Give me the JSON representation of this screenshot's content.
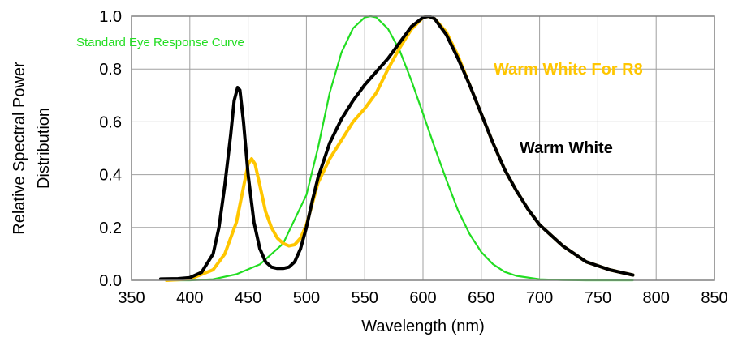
{
  "chart_data": {
    "type": "line",
    "xlabel": "Wavelength (nm)",
    "ylabel_lines": [
      "Relative Spectral Power",
      "Distribution"
    ],
    "xlim": [
      350,
      850
    ],
    "ylim": [
      0.0,
      1.0
    ],
    "x_ticks": [
      "350",
      "400",
      "450",
      "500",
      "550",
      "600",
      "650",
      "700",
      "750",
      "800",
      "850"
    ],
    "y_ticks": [
      "0.0",
      "0.2",
      "0.4",
      "0.6",
      "0.8",
      "1.0"
    ],
    "grid": true,
    "series": [
      {
        "name": "Standard Eye Response Curve",
        "color": "#22dd22",
        "x": [
          380,
          400,
          420,
          440,
          460,
          480,
          500,
          510,
          520,
          530,
          540,
          550,
          555,
          560,
          570,
          580,
          590,
          600,
          610,
          620,
          630,
          640,
          650,
          660,
          670,
          680,
          700,
          720,
          740,
          760,
          780
        ],
        "y": [
          0.0,
          0.0,
          0.004,
          0.023,
          0.06,
          0.139,
          0.323,
          0.503,
          0.71,
          0.862,
          0.954,
          0.995,
          1.0,
          0.995,
          0.952,
          0.87,
          0.757,
          0.631,
          0.503,
          0.381,
          0.265,
          0.175,
          0.107,
          0.061,
          0.032,
          0.017,
          0.004,
          0.001,
          0.0,
          0.0,
          0.0
        ]
      },
      {
        "name": "Warm White For R8",
        "color": "#ffc600",
        "x": [
          380,
          400,
          420,
          430,
          440,
          445,
          450,
          453,
          456,
          460,
          465,
          470,
          475,
          480,
          485,
          490,
          495,
          500,
          505,
          510,
          520,
          530,
          540,
          550,
          560,
          570,
          580,
          590,
          600,
          605,
          610,
          620,
          630,
          640,
          650,
          660,
          670,
          680,
          690,
          700,
          720,
          740,
          760,
          780
        ],
        "y": [
          0.0,
          0.005,
          0.04,
          0.1,
          0.22,
          0.33,
          0.44,
          0.46,
          0.44,
          0.36,
          0.26,
          0.2,
          0.16,
          0.14,
          0.13,
          0.135,
          0.16,
          0.21,
          0.29,
          0.37,
          0.46,
          0.53,
          0.6,
          0.65,
          0.71,
          0.8,
          0.88,
          0.95,
          0.995,
          1.0,
          0.99,
          0.94,
          0.85,
          0.74,
          0.63,
          0.52,
          0.42,
          0.34,
          0.27,
          0.21,
          0.13,
          0.07,
          0.04,
          0.02
        ]
      },
      {
        "name": "Warm White",
        "color": "#000000",
        "x": [
          375,
          390,
          400,
          410,
          420,
          425,
          430,
          435,
          438,
          441,
          443,
          446,
          450,
          455,
          460,
          465,
          470,
          475,
          480,
          485,
          490,
          495,
          500,
          505,
          510,
          520,
          530,
          540,
          550,
          560,
          570,
          580,
          590,
          600,
          605,
          610,
          620,
          630,
          640,
          650,
          660,
          670,
          680,
          690,
          700,
          720,
          740,
          760,
          780
        ],
        "y": [
          0.005,
          0.006,
          0.01,
          0.03,
          0.1,
          0.2,
          0.36,
          0.55,
          0.68,
          0.73,
          0.72,
          0.6,
          0.4,
          0.22,
          0.12,
          0.07,
          0.05,
          0.045,
          0.045,
          0.05,
          0.07,
          0.12,
          0.2,
          0.3,
          0.39,
          0.52,
          0.61,
          0.68,
          0.74,
          0.79,
          0.84,
          0.9,
          0.96,
          0.995,
          1.0,
          0.99,
          0.93,
          0.84,
          0.74,
          0.63,
          0.52,
          0.42,
          0.34,
          0.27,
          0.21,
          0.13,
          0.07,
          0.04,
          0.02
        ]
      }
    ],
    "annotations": [
      {
        "text": "Standard Eye Response Curve",
        "color": "#22dd22"
      },
      {
        "text": "Warm White For R8",
        "color": "#ffc600"
      },
      {
        "text": "Warm White",
        "color": "#000000"
      }
    ]
  }
}
